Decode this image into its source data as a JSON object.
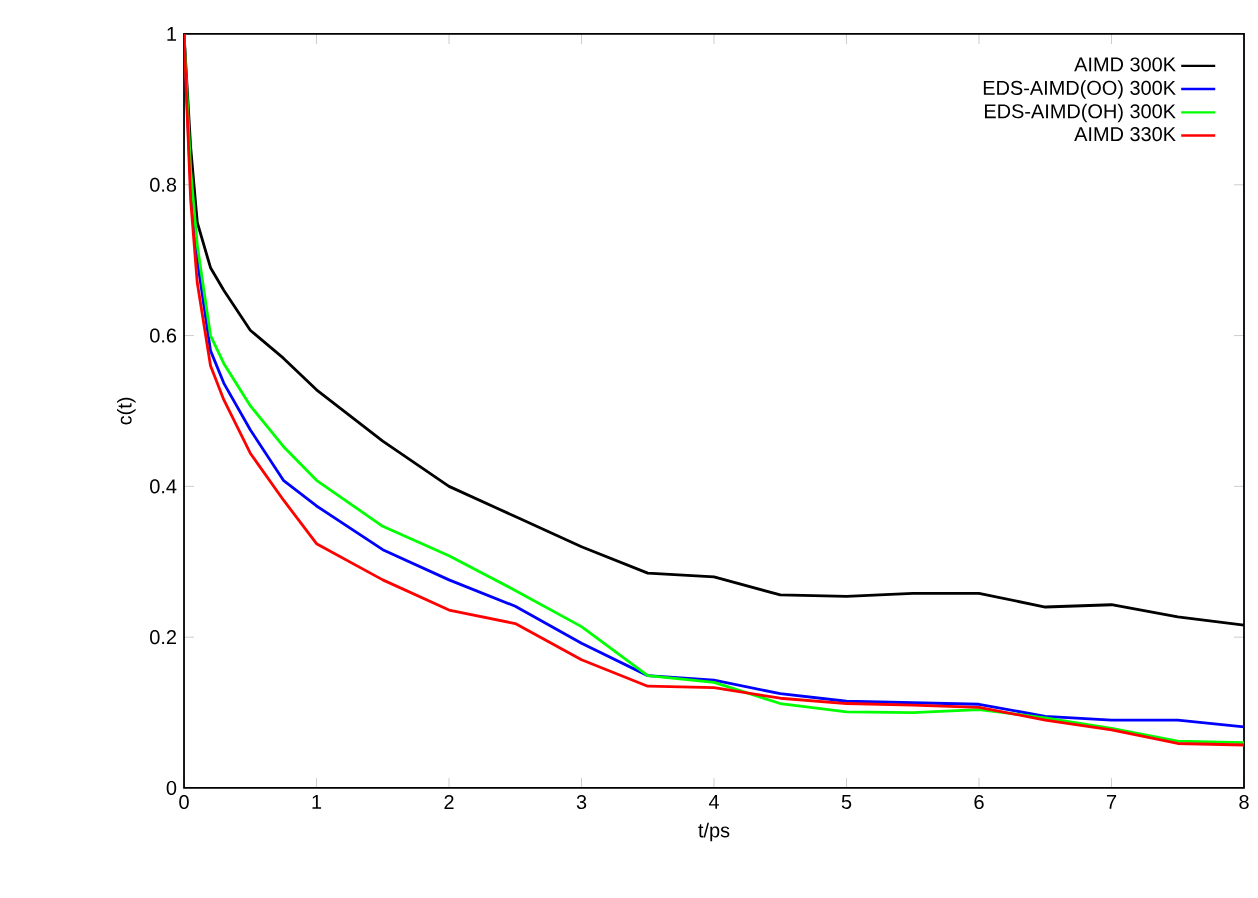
{
  "chart_data": {
    "type": "line",
    "xlabel": "t/ps",
    "ylabel": "c(t)",
    "x": [
      0,
      0.05,
      0.1,
      0.2,
      0.3,
      0.5,
      0.75,
      1,
      1.5,
      2,
      2.5,
      3,
      3.5,
      4,
      4.5,
      5,
      5.5,
      6,
      6.5,
      7,
      7.5,
      8
    ],
    "series": [
      {
        "name": "AIMD 300K",
        "color": "#000000",
        "values": [
          1,
          0.85,
          0.75,
          0.69,
          0.66,
          0.607,
          0.57,
          0.528,
          0.46,
          0.4,
          0.36,
          0.32,
          0.285,
          0.28,
          0.256,
          0.254,
          0.258,
          0.258,
          0.24,
          0.243,
          0.227,
          0.216
        ]
      },
      {
        "name": "EDS-AIMD(OO) 300K",
        "color": "#0000ff",
        "values": [
          1,
          0.8,
          0.7,
          0.58,
          0.537,
          0.475,
          0.408,
          0.374,
          0.316,
          0.276,
          0.241,
          0.192,
          0.149,
          0.143,
          0.125,
          0.115,
          0.113,
          0.111,
          0.095,
          0.09,
          0.09,
          0.081
        ]
      },
      {
        "name": "EDS-AIMD(OH) 300K",
        "color": "#00ff00",
        "values": [
          1,
          0.82,
          0.72,
          0.6,
          0.563,
          0.507,
          0.453,
          0.408,
          0.347,
          0.308,
          0.262,
          0.214,
          0.149,
          0.14,
          0.112,
          0.101,
          0.1,
          0.104,
          0.093,
          0.079,
          0.062,
          0.06
        ]
      },
      {
        "name": "AIMD 330K",
        "color": "#ff0000",
        "values": [
          1,
          0.78,
          0.67,
          0.56,
          0.515,
          0.444,
          0.382,
          0.324,
          0.276,
          0.236,
          0.218,
          0.17,
          0.135,
          0.133,
          0.119,
          0.112,
          0.11,
          0.107,
          0.09,
          0.077,
          0.059,
          0.057
        ]
      }
    ],
    "xlim": [
      0,
      8
    ],
    "ylim": [
      0,
      1
    ],
    "xticks": [
      0,
      1,
      2,
      3,
      4,
      5,
      6,
      7,
      8
    ],
    "yticks": [
      0,
      0.2,
      0.4,
      0.6,
      0.8,
      1
    ],
    "legend": "top right"
  }
}
